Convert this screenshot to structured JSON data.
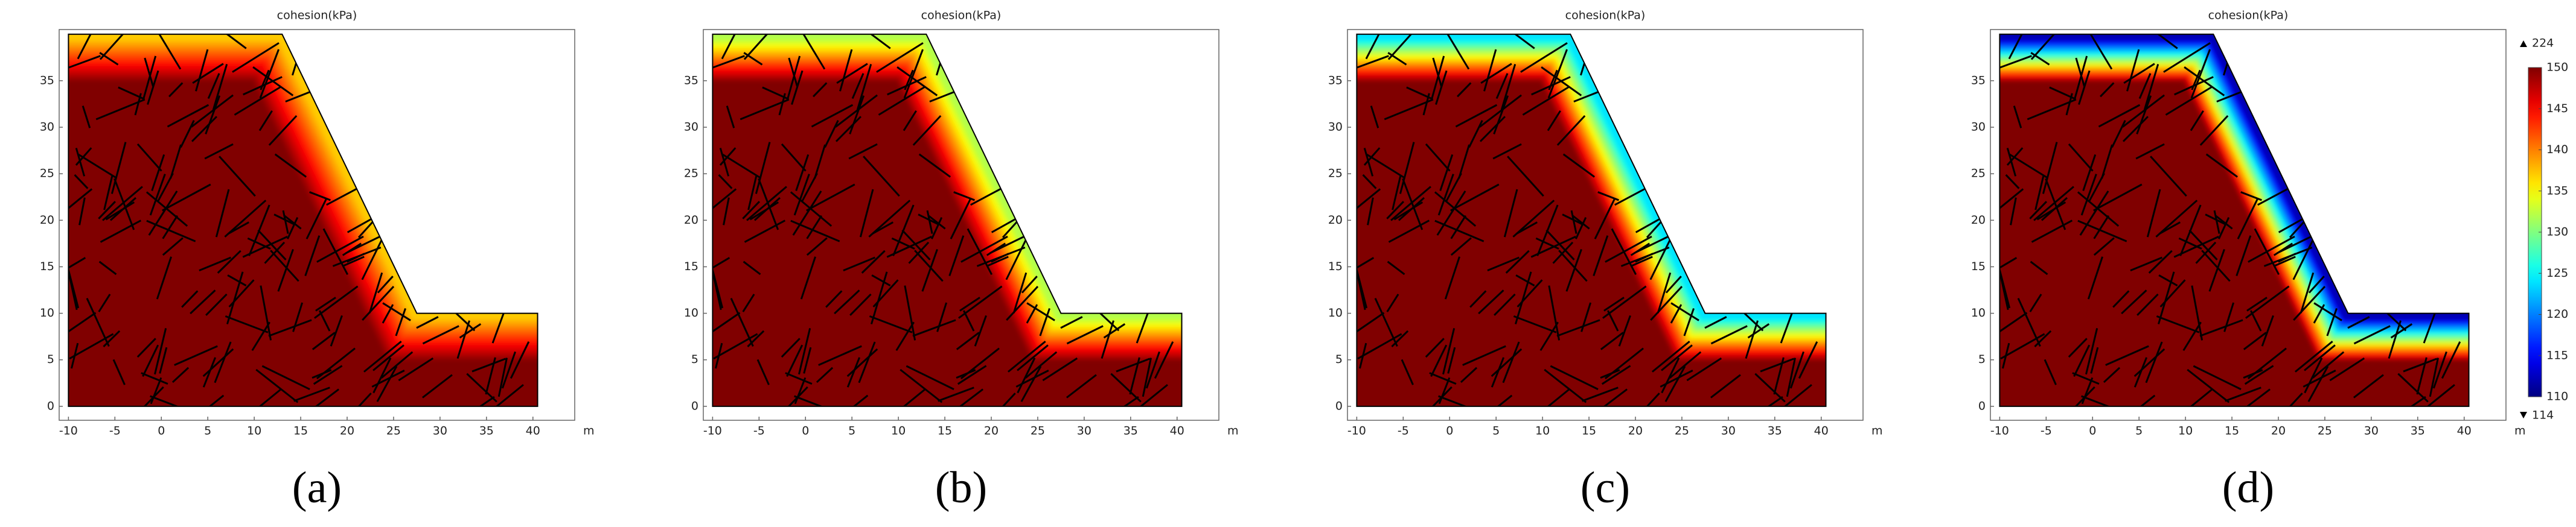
{
  "chart_data": [
    {
      "type": "field",
      "title": "cohesion(kPa)",
      "label": "(a)",
      "x_unit": "m",
      "xlim": [
        -11,
        44.5
      ],
      "ylim": [
        -1.5,
        40.5
      ],
      "xticks": [
        -10,
        -5,
        0,
        5,
        10,
        15,
        20,
        25,
        30,
        35,
        40
      ],
      "yticks": [
        0,
        5,
        10,
        15,
        20,
        25,
        30,
        35
      ],
      "surface_value": 137,
      "interior_value": 150
    },
    {
      "type": "field",
      "title": "cohesion(kPa)",
      "label": "(b)",
      "x_unit": "m",
      "xlim": [
        -11,
        44.5
      ],
      "ylim": [
        -1.5,
        40.5
      ],
      "xticks": [
        -10,
        -5,
        0,
        5,
        10,
        15,
        20,
        25,
        30,
        35,
        40
      ],
      "yticks": [
        0,
        5,
        10,
        15,
        20,
        25,
        30,
        35
      ],
      "surface_value": 132,
      "interior_value": 150
    },
    {
      "type": "field",
      "title": "cohesion(kPa)",
      "label": "(c)",
      "x_unit": "m",
      "xlim": [
        -11,
        44.5
      ],
      "ylim": [
        -1.5,
        40.5
      ],
      "xticks": [
        -10,
        -5,
        0,
        5,
        10,
        15,
        20,
        25,
        30,
        35,
        40
      ],
      "yticks": [
        0,
        5,
        10,
        15,
        20,
        25,
        30,
        35
      ],
      "surface_value": 124,
      "interior_value": 150
    },
    {
      "type": "field",
      "title": "cohesion(kPa)",
      "label": "(d)",
      "x_unit": "m",
      "xlim": [
        -11,
        44.5
      ],
      "ylim": [
        -1.5,
        40.5
      ],
      "xticks": [
        -10,
        -5,
        0,
        5,
        10,
        15,
        20,
        25,
        30,
        35,
        40
      ],
      "yticks": [
        0,
        5,
        10,
        15,
        20,
        25,
        30,
        35
      ],
      "surface_value": 112,
      "interior_value": 150,
      "clim": [
        110,
        150
      ],
      "cticks": [
        110,
        115,
        120,
        125,
        130,
        135,
        140,
        145,
        150
      ],
      "max": 224,
      "min": 114
    }
  ]
}
